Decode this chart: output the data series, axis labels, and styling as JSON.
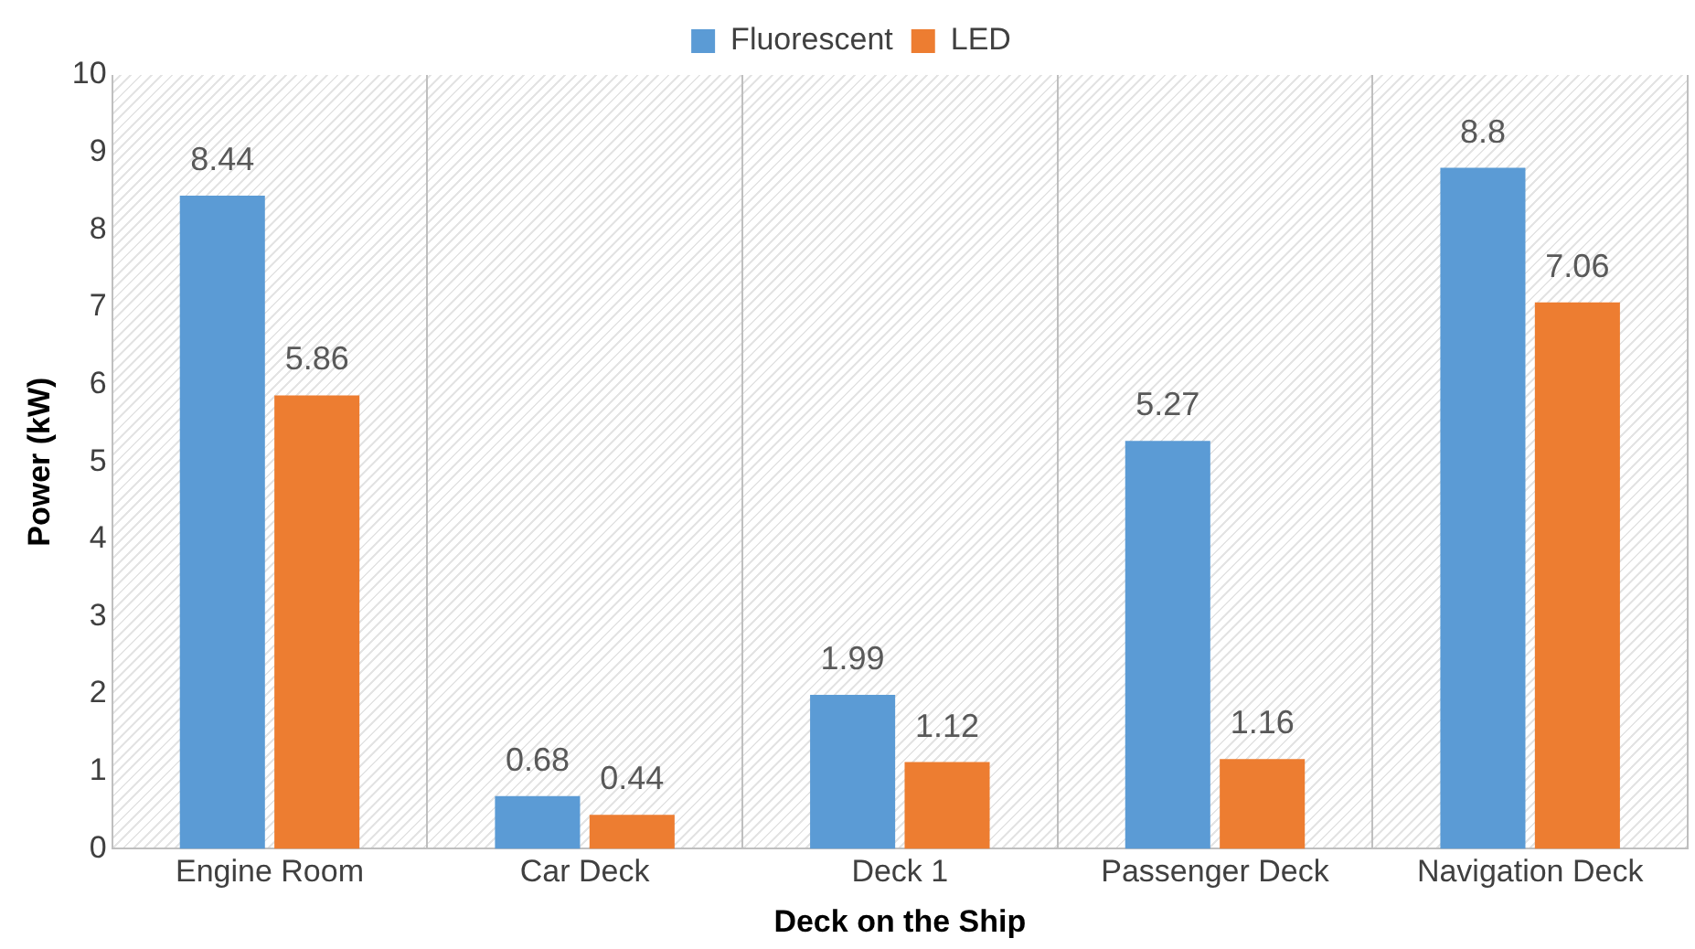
{
  "chart_data": {
    "type": "bar",
    "xlabel": "Deck on the Ship",
    "ylabel": "Power (kW)",
    "categories": [
      "Engine Room",
      "Car Deck",
      "Deck 1",
      "Passenger Deck",
      "Navigation Deck"
    ],
    "series": [
      {
        "name": "Fluorescent",
        "color": "#5b9bd5",
        "values": [
          8.44,
          0.68,
          1.99,
          5.27,
          8.8
        ]
      },
      {
        "name": "LED",
        "color": "#ed7d31",
        "values": [
          5.86,
          0.44,
          1.12,
          1.16,
          7.06
        ]
      }
    ],
    "ylim": [
      0,
      10
    ],
    "yticks": [
      0,
      1,
      2,
      3,
      4,
      5,
      6,
      7,
      8,
      9,
      10
    ],
    "grid": "x",
    "legend": "top",
    "data_labels": true
  }
}
